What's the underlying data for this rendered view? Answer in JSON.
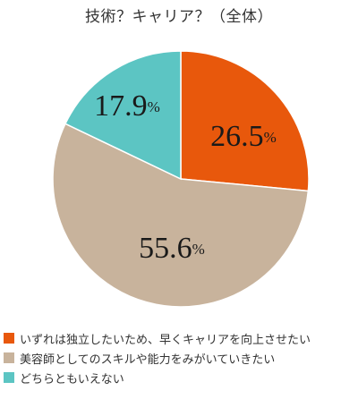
{
  "chart_data": {
    "type": "pie",
    "title": "技術？キャリア？（全体）",
    "unit": "%",
    "slices": [
      {
        "label": "いずれは独立したいため、早くキャリアを向上させたい",
        "value": 26.5,
        "display": "26.5",
        "color": "#E8580C"
      },
      {
        "label": "美容師としてのスキルや能力をみがいていきたい",
        "value": 55.6,
        "display": "55.6",
        "color": "#C8B39C"
      },
      {
        "label": "どちらともいえない",
        "value": 17.9,
        "display": "17.9",
        "color": "#5CC5C3"
      }
    ]
  }
}
